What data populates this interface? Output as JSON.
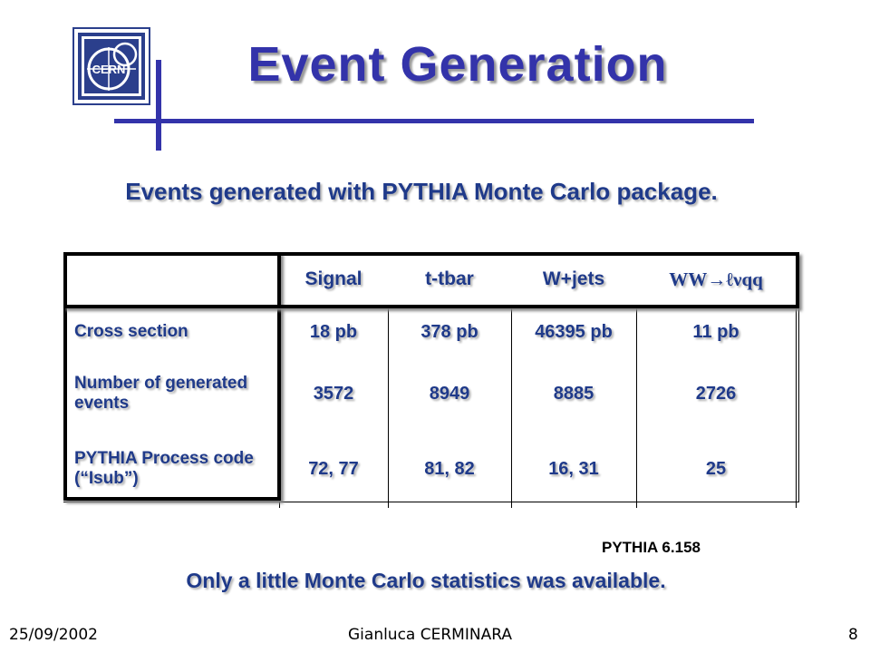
{
  "slide": {
    "title": "Event Generation",
    "subtitle": "Events generated with PYTHIA Monte Carlo package.",
    "logo_text": "CERN",
    "accent": "#3333aa",
    "text_color": "#1f3a8a"
  },
  "table": {
    "columns": [
      "Signal",
      "t-tbar",
      "W+jets",
      "WW→ℓνqq"
    ],
    "rows": [
      {
        "label": "Cross section",
        "values": [
          "18 pb",
          "378 pb",
          "46395 pb",
          "11 pb"
        ]
      },
      {
        "label": "Number of generated events",
        "values": [
          "3572",
          "8949",
          "8885",
          "2726"
        ]
      },
      {
        "label": "PYTHIA Process code (“Isub”)",
        "values": [
          "72, 77",
          "81, 82",
          "16, 31",
          "25"
        ]
      }
    ]
  },
  "version_note": "PYTHIA 6.158",
  "bottom_note": "Only a little Monte Carlo statistics was available.",
  "footer": {
    "date": "25/09/2002",
    "author": "Gianluca CERMINARA",
    "page": "8"
  }
}
